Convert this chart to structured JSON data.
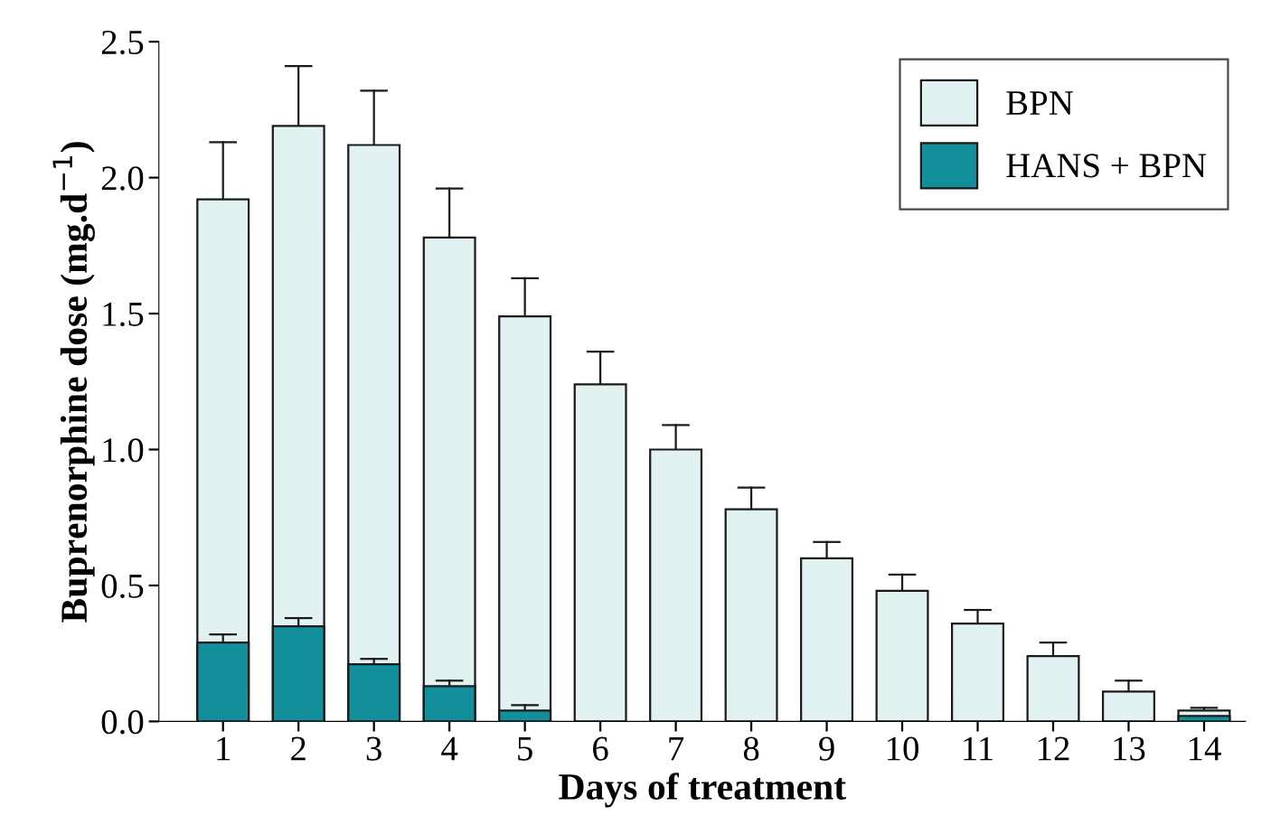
{
  "chart_data": {
    "type": "bar",
    "xlabel": "Days of treatment",
    "ylabel": "Buprenorphine dose (mg.d$^{−1}$)",
    "categories": [
      "1",
      "2",
      "3",
      "4",
      "5",
      "6",
      "7",
      "8",
      "9",
      "10",
      "11",
      "12",
      "13",
      "14"
    ],
    "series": [
      {
        "name": "BPN",
        "color": "#e2f1f1",
        "values": [
          1.92,
          2.19,
          2.12,
          1.78,
          1.49,
          1.24,
          1.0,
          0.78,
          0.6,
          0.48,
          0.36,
          0.24,
          0.11,
          0.04
        ],
        "errors": [
          0.21,
          0.22,
          0.2,
          0.18,
          0.14,
          0.12,
          0.09,
          0.08,
          0.06,
          0.06,
          0.05,
          0.05,
          0.04,
          0.01
        ]
      },
      {
        "name": "HANS + BPN",
        "color": "#138e9b",
        "values": [
          0.29,
          0.35,
          0.21,
          0.13,
          0.04,
          null,
          null,
          null,
          null,
          null,
          null,
          null,
          null,
          0.02
        ],
        "errors": [
          0.03,
          0.03,
          0.02,
          0.02,
          0.02,
          null,
          null,
          null,
          null,
          null,
          null,
          null,
          null,
          null
        ]
      }
    ],
    "ylim": [
      0,
      2.5
    ],
    "yticks": [
      {
        "value": 0,
        "label": "0.0"
      },
      {
        "value": 0.5,
        "label": "0.5"
      },
      {
        "value": 1,
        "label": "1.0"
      },
      {
        "value": 1.5,
        "label": "1.5"
      },
      {
        "value": 2,
        "label": "2.0"
      },
      {
        "value": 2.5,
        "label": "2.5"
      }
    ],
    "grid": false,
    "legend": "top right"
  }
}
